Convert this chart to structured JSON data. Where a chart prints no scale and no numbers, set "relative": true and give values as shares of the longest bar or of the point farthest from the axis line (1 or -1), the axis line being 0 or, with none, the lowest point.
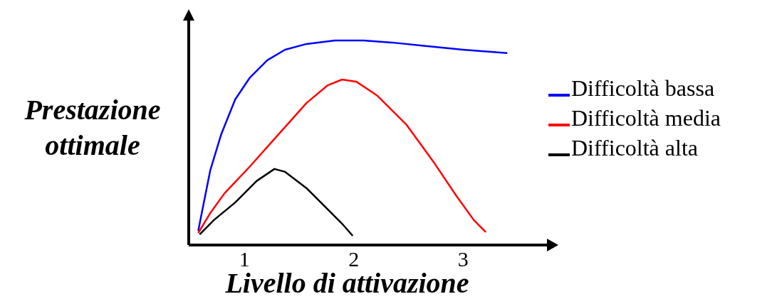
{
  "chart_data": {
    "type": "line",
    "xlabel": "Livello di attivazione",
    "ylabel": "Prestazione ottimale",
    "relative": true,
    "xlim": [
      0.49,
      3.78
    ],
    "xticks": [
      1,
      2,
      3
    ],
    "legend": "right",
    "series": [
      {
        "name": "Difficoltà bassa",
        "color": "#0000ff",
        "x": [
          0.577,
          0.622,
          0.687,
          0.785,
          0.915,
          1.046,
          1.208,
          1.371,
          1.567,
          1.827,
          2.088,
          2.349,
          2.674,
          3.0,
          3.404
        ],
        "values": [
          0.069,
          0.191,
          0.365,
          0.538,
          0.712,
          0.816,
          0.903,
          0.955,
          0.983,
          1.0,
          1.0,
          0.99,
          0.972,
          0.955,
          0.938
        ]
      },
      {
        "name": "Difficoltà media",
        "color": "#ff0000",
        "x": [
          0.577,
          0.687,
          0.818,
          1.046,
          1.306,
          1.567,
          1.762,
          1.893,
          2.023,
          2.218,
          2.479,
          2.739,
          2.935,
          3.098,
          3.208
        ],
        "values": [
          0.059,
          0.156,
          0.253,
          0.382,
          0.538,
          0.694,
          0.781,
          0.809,
          0.799,
          0.729,
          0.59,
          0.399,
          0.243,
          0.122,
          0.063
        ]
      },
      {
        "name": "Difficoltà alta",
        "color": "#000000",
        "x": [
          0.59,
          0.72,
          0.915,
          1.111,
          1.274,
          1.371,
          1.567,
          1.762,
          1.893,
          1.99
        ],
        "values": [
          0.052,
          0.122,
          0.208,
          0.313,
          0.372,
          0.358,
          0.278,
          0.174,
          0.104,
          0.045
        ]
      }
    ]
  }
}
